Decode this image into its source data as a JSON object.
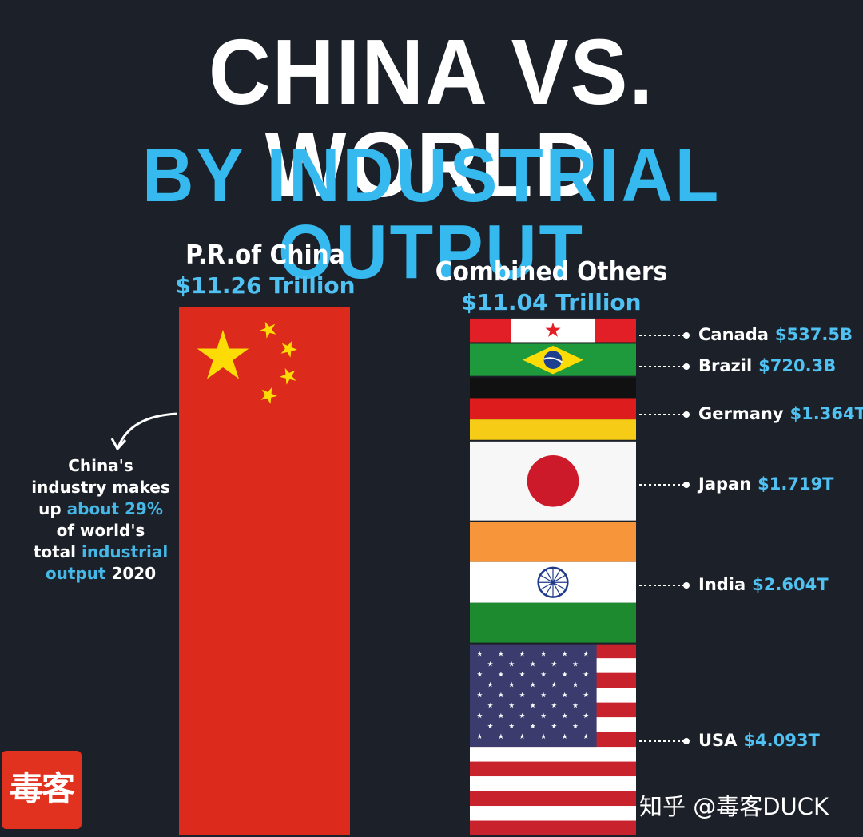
{
  "title": {
    "line1": "CHINA VS. WORLD",
    "line2": "BY INDUSTRIAL OUTPUT"
  },
  "china": {
    "name": "P.R.of China",
    "value": "$11.26 Trillion"
  },
  "others": {
    "name": "Combined Others",
    "value": "$11.04 Trillion"
  },
  "note": {
    "line1": "China's",
    "line2": "industry makes",
    "line3a": "up ",
    "line3b": "about 29%",
    "line4": "of world's",
    "line5a": "total ",
    "line5b": "industrial",
    "line6a": "output",
    "line6b": " 2020"
  },
  "chart_data": {
    "type": "bar",
    "title": "CHINA VS. WORLD BY INDUSTRIAL OUTPUT",
    "categories": [
      "P.R.of China",
      "Combined Others"
    ],
    "totals_trillion": [
      11.26,
      11.04
    ],
    "stack_order_top_to_bottom": [
      "Canada",
      "Brazil",
      "Germany",
      "Japan",
      "India",
      "USA"
    ],
    "segments": [
      {
        "name": "Canada",
        "label": "$537.5B",
        "value_trillion": 0.5375
      },
      {
        "name": "Brazil",
        "label": "$720.3B",
        "value_trillion": 0.7203
      },
      {
        "name": "Germany",
        "label": "$1.364T",
        "value_trillion": 1.364
      },
      {
        "name": "Japan",
        "label": "$1.719T",
        "value_trillion": 1.719
      },
      {
        "name": "India",
        "label": "$2.604T",
        "value_trillion": 2.604
      },
      {
        "name": "USA",
        "label": "$4.093T",
        "value_trillion": 4.093
      }
    ],
    "colors": {
      "china_red": "#dc2a1c",
      "star_yellow": "#fcdc04",
      "accent_blue": "#35b9ef",
      "background": "#1c2129"
    }
  },
  "seal": {
    "text": "毒客"
  },
  "watermark": {
    "text": "知乎 @毒客DUCK"
  }
}
